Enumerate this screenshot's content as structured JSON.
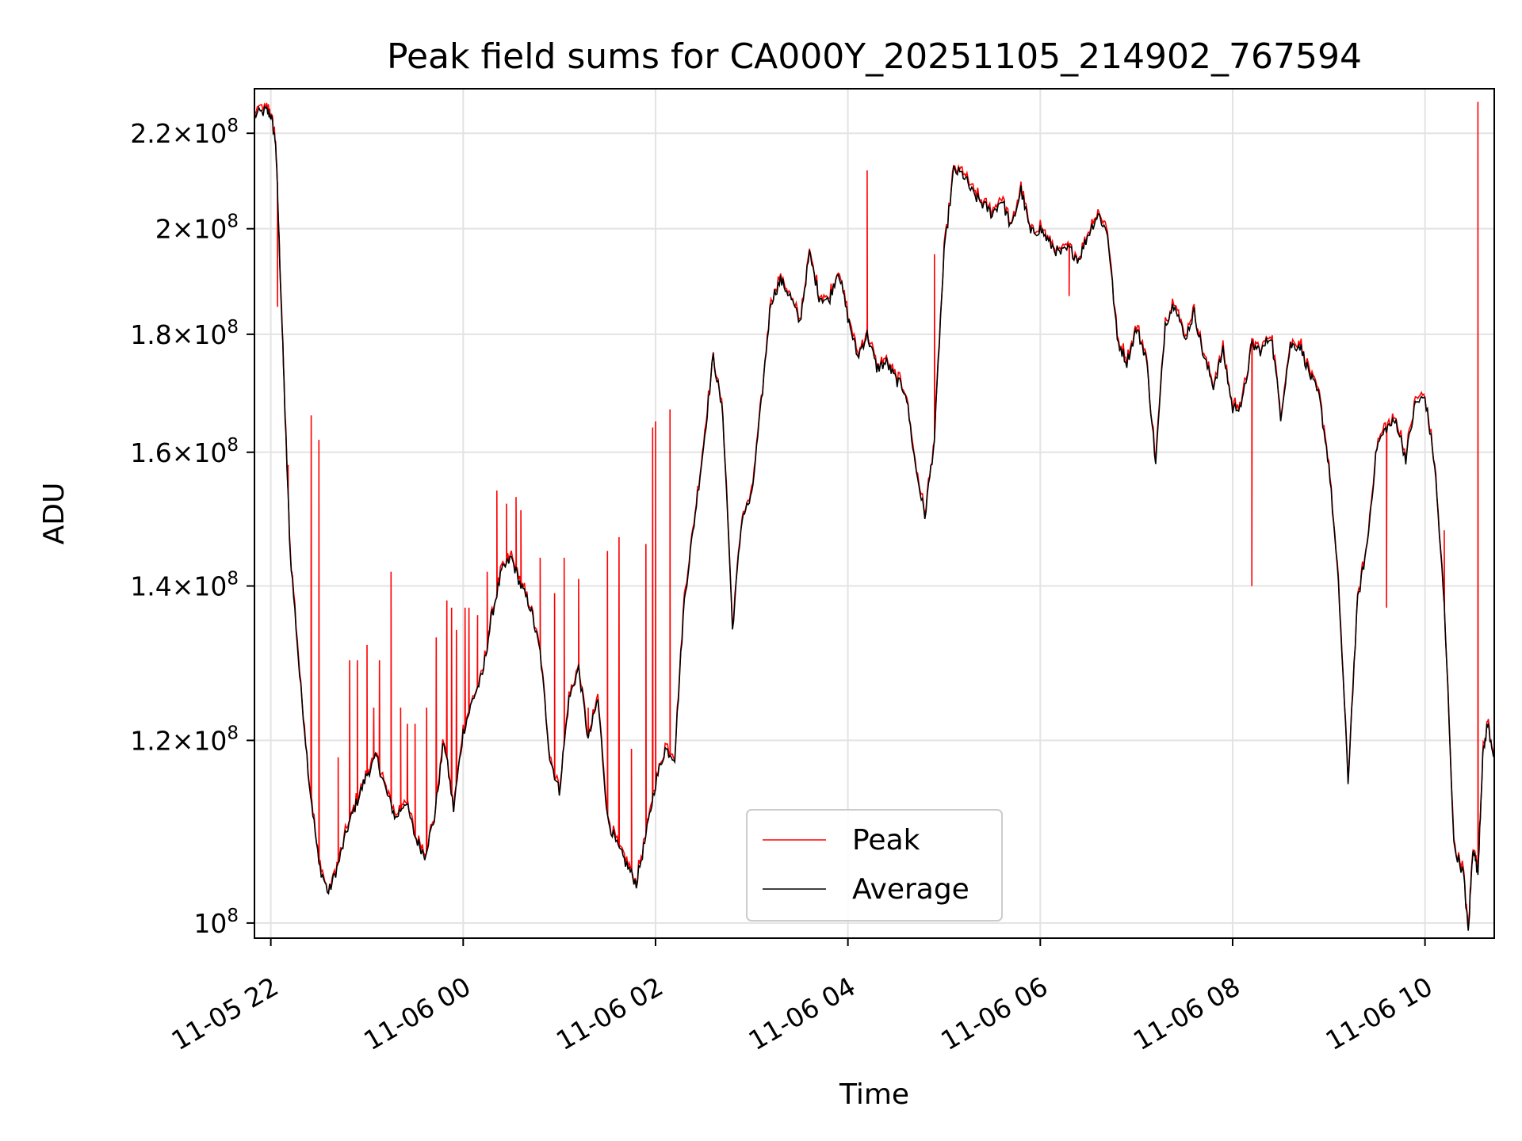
{
  "chart_data": {
    "type": "line",
    "title": "Peak field sums for CA000Y_20251105_214902_767594",
    "xlabel": "Time",
    "ylabel": "ADU",
    "yscale": "log",
    "grid": true,
    "legend_position": "lower-center",
    "x_unit": "hours since 11-05 22:00",
    "xlim": [
      -0.17,
      12.72
    ],
    "ylim": [
      98500000,
      230000000
    ],
    "x_ticks": [
      {
        "value": 0,
        "label": "11-05 22"
      },
      {
        "value": 2,
        "label": "11-06 00"
      },
      {
        "value": 4,
        "label": "11-06 02"
      },
      {
        "value": 6,
        "label": "11-06 04"
      },
      {
        "value": 8,
        "label": "11-06 06"
      },
      {
        "value": 10,
        "label": "11-06 08"
      },
      {
        "value": 12,
        "label": "11-06 10"
      }
    ],
    "y_ticks": [
      {
        "value": 100000000,
        "mantissa": "",
        "exponent": "8"
      },
      {
        "value": 120000000,
        "mantissa": "1.2",
        "exponent": "8"
      },
      {
        "value": 140000000,
        "mantissa": "1.4",
        "exponent": "8"
      },
      {
        "value": 160000000,
        "mantissa": "1.6",
        "exponent": "8"
      },
      {
        "value": 180000000,
        "mantissa": "1.8",
        "exponent": "8"
      },
      {
        "value": 200000000,
        "mantissa": "2",
        "exponent": "8"
      },
      {
        "value": 220000000,
        "mantissa": "2.2",
        "exponent": "8"
      }
    ],
    "series": [
      {
        "name": "Peak",
        "color": "#ff0000",
        "spikes": [
          [
            0.07,
            185000000
          ],
          [
            0.18,
            158000000
          ],
          [
            0.22,
            142000000
          ],
          [
            0.42,
            166000000
          ],
          [
            0.5,
            162000000
          ],
          [
            0.7,
            118000000
          ],
          [
            0.82,
            130000000
          ],
          [
            0.9,
            130000000
          ],
          [
            1.0,
            132000000
          ],
          [
            1.07,
            124000000
          ],
          [
            1.13,
            130000000
          ],
          [
            1.25,
            142000000
          ],
          [
            1.35,
            124000000
          ],
          [
            1.42,
            122000000
          ],
          [
            1.5,
            122000000
          ],
          [
            1.62,
            124000000
          ],
          [
            1.72,
            133000000
          ],
          [
            1.83,
            138000000
          ],
          [
            1.88,
            137000000
          ],
          [
            1.93,
            134000000
          ],
          [
            2.02,
            137000000
          ],
          [
            2.06,
            137000000
          ],
          [
            2.15,
            136000000
          ],
          [
            2.25,
            142000000
          ],
          [
            2.35,
            154000000
          ],
          [
            2.45,
            152000000
          ],
          [
            2.55,
            153000000
          ],
          [
            2.6,
            151000000
          ],
          [
            2.8,
            144000000
          ],
          [
            2.95,
            139000000
          ],
          [
            3.05,
            144000000
          ],
          [
            3.2,
            141000000
          ],
          [
            3.3,
            124000000
          ],
          [
            3.5,
            145000000
          ],
          [
            3.62,
            147000000
          ],
          [
            3.75,
            119000000
          ],
          [
            3.9,
            146000000
          ],
          [
            3.97,
            164000000
          ],
          [
            4.0,
            165000000
          ],
          [
            4.15,
            167000000
          ],
          [
            6.2,
            212000000
          ],
          [
            6.9,
            195000000
          ],
          [
            8.3,
            187000000
          ],
          [
            10.2,
            140000000
          ],
          [
            11.6,
            137000000
          ],
          [
            12.0,
            169000000
          ],
          [
            12.2,
            148000000
          ],
          [
            12.55,
            227000000
          ]
        ]
      },
      {
        "name": "Average",
        "color": "#000000",
        "keypoints": [
          [
            -0.17,
            224000000
          ],
          [
            -0.05,
            225000000
          ],
          [
            0.0,
            224000000
          ],
          [
            0.05,
            218000000
          ],
          [
            0.1,
            190000000
          ],
          [
            0.15,
            165000000
          ],
          [
            0.2,
            145000000
          ],
          [
            0.3,
            128000000
          ],
          [
            0.4,
            115000000
          ],
          [
            0.5,
            106000000
          ],
          [
            0.6,
            103000000
          ],
          [
            0.7,
            106000000
          ],
          [
            0.8,
            110000000
          ],
          [
            0.9,
            113000000
          ],
          [
            1.0,
            116000000
          ],
          [
            1.1,
            118000000
          ],
          [
            1.2,
            114000000
          ],
          [
            1.3,
            111000000
          ],
          [
            1.4,
            113000000
          ],
          [
            1.5,
            109000000
          ],
          [
            1.6,
            107000000
          ],
          [
            1.7,
            111000000
          ],
          [
            1.8,
            120000000
          ],
          [
            1.9,
            112000000
          ],
          [
            2.0,
            121000000
          ],
          [
            2.1,
            125000000
          ],
          [
            2.2,
            128000000
          ],
          [
            2.3,
            136000000
          ],
          [
            2.4,
            142000000
          ],
          [
            2.5,
            144000000
          ],
          [
            2.6,
            140000000
          ],
          [
            2.7,
            137000000
          ],
          [
            2.8,
            131000000
          ],
          [
            2.9,
            118000000
          ],
          [
            3.0,
            114000000
          ],
          [
            3.1,
            125000000
          ],
          [
            3.2,
            129000000
          ],
          [
            3.3,
            120000000
          ],
          [
            3.4,
            125000000
          ],
          [
            3.5,
            111000000
          ],
          [
            3.6,
            108000000
          ],
          [
            3.7,
            106000000
          ],
          [
            3.8,
            104000000
          ],
          [
            3.9,
            109000000
          ],
          [
            4.0,
            115000000
          ],
          [
            4.1,
            119000000
          ],
          [
            4.2,
            118000000
          ],
          [
            4.3,
            138000000
          ],
          [
            4.4,
            149000000
          ],
          [
            4.5,
            161000000
          ],
          [
            4.6,
            176000000
          ],
          [
            4.7,
            166000000
          ],
          [
            4.8,
            134000000
          ],
          [
            4.9,
            150000000
          ],
          [
            5.0,
            153000000
          ],
          [
            5.1,
            168000000
          ],
          [
            5.2,
            186000000
          ],
          [
            5.3,
            190000000
          ],
          [
            5.4,
            187000000
          ],
          [
            5.5,
            182000000
          ],
          [
            5.6,
            195000000
          ],
          [
            5.7,
            187000000
          ],
          [
            5.8,
            186000000
          ],
          [
            5.9,
            192000000
          ],
          [
            6.0,
            183000000
          ],
          [
            6.1,
            176000000
          ],
          [
            6.2,
            180000000
          ],
          [
            6.3,
            174000000
          ],
          [
            6.4,
            175000000
          ],
          [
            6.5,
            172000000
          ],
          [
            6.6,
            170000000
          ],
          [
            6.7,
            158000000
          ],
          [
            6.8,
            150000000
          ],
          [
            6.9,
            162000000
          ],
          [
            7.0,
            195000000
          ],
          [
            7.1,
            212000000
          ],
          [
            7.2,
            211000000
          ],
          [
            7.3,
            207000000
          ],
          [
            7.4,
            205000000
          ],
          [
            7.5,
            203000000
          ],
          [
            7.6,
            206000000
          ],
          [
            7.7,
            200000000
          ],
          [
            7.8,
            208000000
          ],
          [
            7.9,
            199000000
          ],
          [
            8.0,
            200000000
          ],
          [
            8.1,
            197000000
          ],
          [
            8.2,
            195000000
          ],
          [
            8.3,
            196000000
          ],
          [
            8.4,
            194000000
          ],
          [
            8.5,
            199000000
          ],
          [
            8.6,
            203000000
          ],
          [
            8.7,
            199000000
          ],
          [
            8.8,
            179000000
          ],
          [
            8.9,
            175000000
          ],
          [
            9.0,
            181000000
          ],
          [
            9.1,
            176000000
          ],
          [
            9.2,
            158000000
          ],
          [
            9.3,
            182000000
          ],
          [
            9.4,
            186000000
          ],
          [
            9.5,
            179000000
          ],
          [
            9.6,
            184000000
          ],
          [
            9.7,
            176000000
          ],
          [
            9.8,
            171000000
          ],
          [
            9.9,
            177000000
          ],
          [
            10.0,
            167000000
          ],
          [
            10.1,
            168000000
          ],
          [
            10.2,
            178000000
          ],
          [
            10.3,
            177000000
          ],
          [
            10.4,
            180000000
          ],
          [
            10.5,
            166000000
          ],
          [
            10.6,
            178000000
          ],
          [
            10.7,
            178000000
          ],
          [
            10.8,
            173000000
          ],
          [
            10.9,
            169000000
          ],
          [
            11.0,
            158000000
          ],
          [
            11.1,
            140000000
          ],
          [
            11.2,
            115000000
          ],
          [
            11.3,
            138000000
          ],
          [
            11.4,
            146000000
          ],
          [
            11.5,
            161000000
          ],
          [
            11.6,
            164000000
          ],
          [
            11.7,
            165000000
          ],
          [
            11.8,
            159000000
          ],
          [
            11.9,
            168000000
          ],
          [
            12.0,
            169000000
          ],
          [
            12.1,
            158000000
          ],
          [
            12.2,
            137000000
          ],
          [
            12.3,
            108000000
          ],
          [
            12.4,
            105000000
          ],
          [
            12.45,
            99000000
          ],
          [
            12.5,
            108000000
          ],
          [
            12.55,
            105000000
          ],
          [
            12.6,
            118000000
          ],
          [
            12.65,
            122000000
          ],
          [
            12.72,
            118000000
          ]
        ]
      }
    ]
  }
}
